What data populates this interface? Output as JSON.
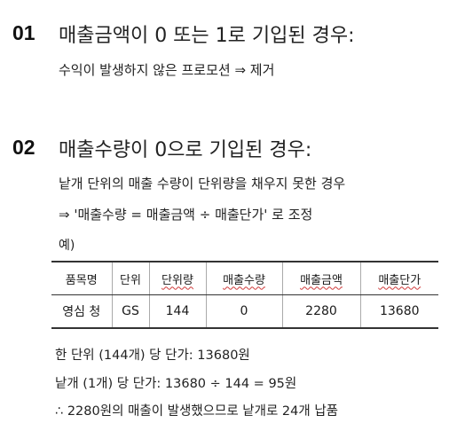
{
  "section1": {
    "number": "01",
    "heading": "매출금액이 0 또는 1로 기입된 경우:",
    "line": "수익이 발생하지 않은 프로모션 ⇒ 제거"
  },
  "section2": {
    "number": "02",
    "heading": "매출수량이 0으로 기입된 경우:",
    "line1": "낱개 단위의 매출 수량이 단위량을 채우지 못한 경우",
    "line2": "⇒ '매출수량 = 매출금액 ÷ 매출단가' 로 조정",
    "example_label": "예)"
  },
  "table": {
    "headers": [
      "품목명",
      "단위",
      "단위량",
      "매출수량",
      "매출금액",
      "매출단가"
    ],
    "row": [
      "영심 청",
      "GS",
      "144",
      "0",
      "2280",
      "13680"
    ]
  },
  "notes": [
    "한 단위 (144개) 당 단가: 13680원",
    "낱개 (1개) 당 단가: 13680 ÷ 144 = 95원",
    "∴ 2280원의 매출이 발생했으므로 낱개로 24개 납품"
  ]
}
